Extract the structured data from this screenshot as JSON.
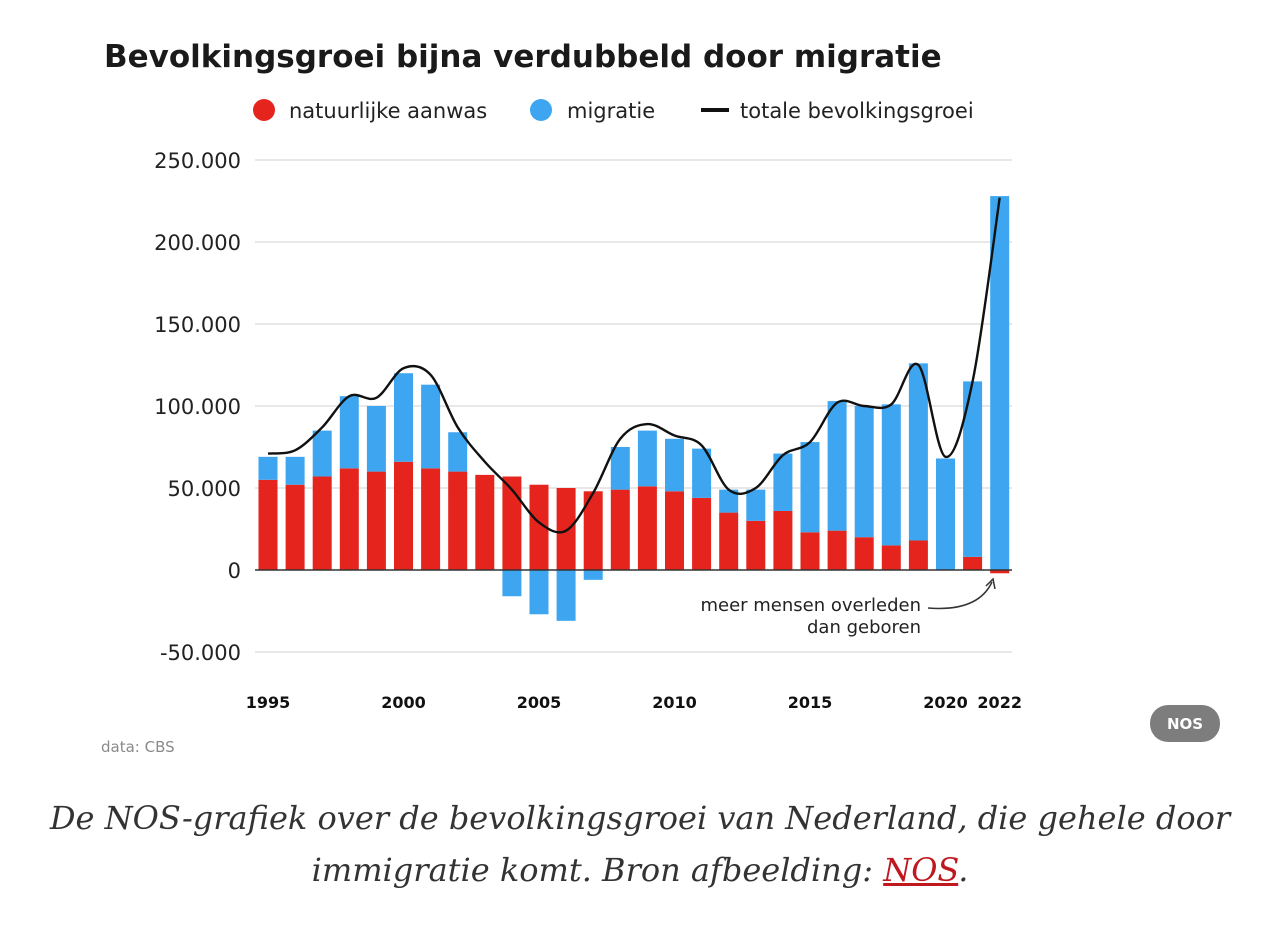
{
  "chart_data": {
    "type": "bar",
    "title": "Bevolkingsgroei bijna verdubbeld door migratie",
    "legend": [
      "natuurlijke aanwas",
      "migratie",
      "totale bevolkingsgroei"
    ],
    "legend_position": "top",
    "stacked": true,
    "grid": true,
    "x": [
      1995,
      1996,
      1997,
      1998,
      1999,
      2000,
      2001,
      2002,
      2003,
      2004,
      2005,
      2006,
      2007,
      2008,
      2009,
      2010,
      2011,
      2012,
      2013,
      2014,
      2015,
      2016,
      2017,
      2018,
      2019,
      2020,
      2021,
      2022
    ],
    "x_tick_labels": [
      "1995",
      "2000",
      "2005",
      "2010",
      "2015",
      "2020",
      "2022"
    ],
    "y_tick_labels": [
      "250.000",
      "200.000",
      "150.000",
      "100.000",
      "50.000",
      "0",
      "-50.000"
    ],
    "ylim": [
      -50000,
      250000
    ],
    "series": [
      {
        "name": "natuurlijke aanwas",
        "type": "bar",
        "color": "#e5251d",
        "values": [
          55000,
          52000,
          57000,
          62000,
          60000,
          66000,
          62000,
          60000,
          58000,
          57000,
          52000,
          50000,
          48000,
          49000,
          51000,
          48000,
          44000,
          35000,
          30000,
          36000,
          23000,
          24000,
          20000,
          15000,
          18000,
          0,
          8000,
          -2000
        ]
      },
      {
        "name": "migratie",
        "type": "bar",
        "color": "#3ea6f0",
        "values": [
          14000,
          17000,
          28000,
          44000,
          40000,
          54000,
          51000,
          24000,
          0,
          -16000,
          -27000,
          -31000,
          -6000,
          26000,
          34000,
          32000,
          30000,
          14000,
          19000,
          35000,
          55000,
          79000,
          80000,
          86000,
          108000,
          68000,
          107000,
          228000
        ]
      },
      {
        "name": "totale bevolkingsgroei",
        "type": "line",
        "color": "#111111",
        "values": [
          71000,
          73000,
          87000,
          106000,
          105000,
          123000,
          119000,
          87000,
          66000,
          49000,
          29000,
          24000,
          47000,
          80000,
          89000,
          82000,
          76000,
          49000,
          50000,
          70000,
          78000,
          102000,
          100000,
          101000,
          125000,
          69000,
          115000,
          227000
        ]
      }
    ],
    "annotation": [
      "meer mensen overleden",
      "dan geboren"
    ]
  },
  "source_text": "data: CBS",
  "logo_text": "NOS",
  "caption": {
    "text": "De NOS-grafiek over de bevolkingsgroei van Nederland, die gehele door immigratie komt. Bron afbeelding: ",
    "link": "NOS",
    "end": "."
  }
}
